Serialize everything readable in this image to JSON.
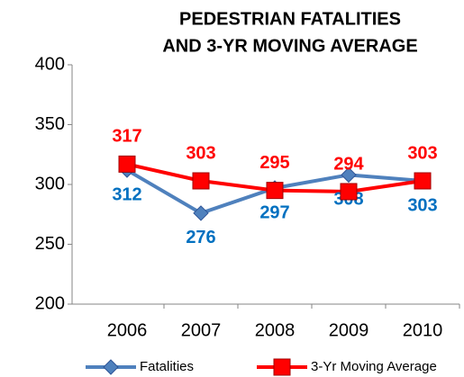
{
  "chart_data": {
    "type": "line",
    "title": [
      "PEDESTRIAN FATALITIES",
      "AND 3-YR MOVING AVERAGE"
    ],
    "categories": [
      "2006",
      "2007",
      "2008",
      "2009",
      "2010"
    ],
    "series": [
      {
        "name": "Fatalities",
        "color": "#4f81bd",
        "label_color": "#0070c0",
        "marker": "diamond",
        "values": [
          312,
          276,
          297,
          308,
          303
        ]
      },
      {
        "name": "3-Yr Moving Average",
        "color": "#ff0000",
        "label_color": "#ff0000",
        "marker": "square",
        "values": [
          317,
          303,
          295,
          294,
          303
        ]
      }
    ],
    "ylim": [
      200,
      400
    ],
    "yticks": [
      200,
      250,
      300,
      350,
      400
    ],
    "grid": false,
    "legend": "bottom"
  }
}
